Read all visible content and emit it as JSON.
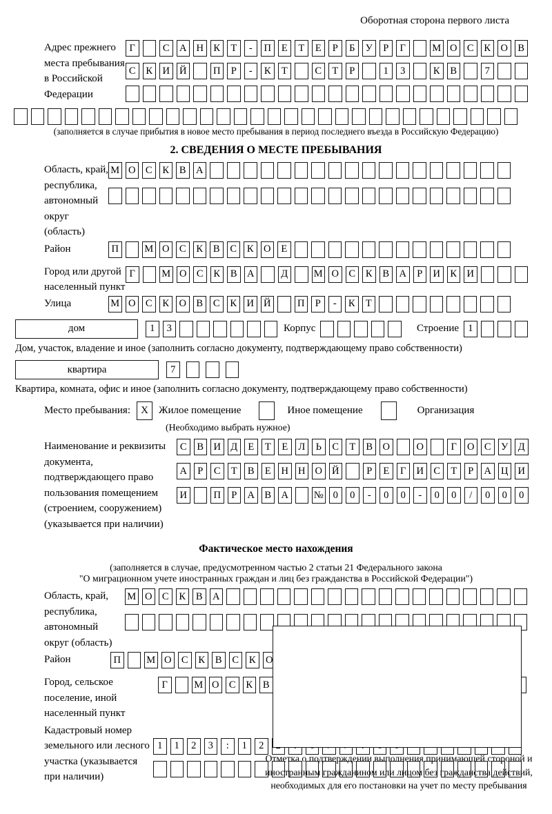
{
  "page": {
    "header_note": "Оборотная сторона первого листа"
  },
  "prev_address": {
    "label": "Адрес прежнего места пребывания в Российской Федерации",
    "rows": [
      {
        "value": "Г САНКТ-ПЕТЕРБУРГ МОСКОВ",
        "count": 24
      },
      {
        "value": "СКИЙ ПР-КТ СТР 13 КВ 7",
        "count": 24
      },
      {
        "value": "",
        "count": 24
      },
      {
        "value": "",
        "count": 30
      }
    ],
    "note": "(заполняется в случае прибытия в новое место пребывания в период последнего въезда в Российскую Федерацию)"
  },
  "section2": {
    "title": "2. СВЕДЕНИЯ О МЕСТЕ ПРЕБЫВАНИЯ",
    "region": {
      "label": "Область, край, республика, автономный округ (область)",
      "rows": [
        {
          "value": "МОСКВА",
          "count": 24
        },
        {
          "value": "",
          "count": 24
        }
      ]
    },
    "district": {
      "label": "Район",
      "row": {
        "value": "П МОСКВСКОЕ",
        "count": 24
      }
    },
    "city": {
      "label": "Город или другой населенный пункт",
      "row": {
        "value": "Г МОСКВА Д МОСКВАРИКИ",
        "count": 24
      }
    },
    "street": {
      "label": "Улица",
      "row": {
        "value": "МОСКОВСКИЙ ПР-КТ",
        "count": 24
      }
    },
    "house": {
      "box_label": "дом",
      "row": {
        "value": "13",
        "count": 8
      },
      "korpus_label": "Корпус",
      "korpus_row": {
        "value": "",
        "count": 5
      },
      "stroenie_label": "Строение",
      "stroenie_row": {
        "value": "1",
        "count": 4
      },
      "note": "Дом, участок, владение и иное (заполнить согласно документу, подтверждающему право собственности)"
    },
    "apartment": {
      "box_label": "квартира",
      "row": {
        "value": "7",
        "count": 4
      },
      "note": "Квартира, комната, офис и иное (заполнить согласно документу, подтверждающему право собственности)"
    },
    "stay_type": {
      "label": "Место пребывания:",
      "options": [
        {
          "checked": "X",
          "label": "Жилое помещение"
        },
        {
          "checked": "",
          "label": "Иное помещение"
        },
        {
          "checked": "",
          "label": "Организация"
        }
      ],
      "note": "(Необходимо выбрать нужное)"
    },
    "document": {
      "label": "Наименование и реквизиты документа, подтверждающего право пользования помещением (строением, сооружением) (указывается при наличии)",
      "rows": [
        {
          "value": "СВИДЕТЕЛЬСТВО О ГОСУД",
          "count": 21
        },
        {
          "value": "АРСТВЕННОЙ РЕГИСТРАЦИ",
          "count": 21
        },
        {
          "value": "И ПРАВА №00-00-00/000",
          "count": 21
        }
      ]
    }
  },
  "actual_location": {
    "title": "Фактическое место нахождения",
    "note_line1": "(заполняется в случае, предусмотренном частью 2 статьи 21 Федерального закона",
    "note_line2": "\"О миграционном учете иностранных граждан и лиц без гражданства в Российской Федерации\")",
    "region": {
      "label": "Область, край, республика, автономный округ (область)",
      "rows": [
        {
          "value": "МОСКВА",
          "count": 24
        },
        {
          "value": "",
          "count": 24
        }
      ]
    },
    "district": {
      "label": "Район",
      "row": {
        "value": "П МОСКВСКОЕ",
        "count": 24
      }
    },
    "city": {
      "label": "Город, сельское поселение, иной населенный пункт",
      "row": {
        "value": "Г МОСКВА Д МОСКВАРИКИ",
        "count": 22
      }
    },
    "cadastral": {
      "label": "Кадастровый номер земельного или лесного участка (указывается при наличии)",
      "rows": [
        {
          "value": "1123:122:677:66",
          "count": 22
        },
        {
          "value": "",
          "count": 22
        }
      ]
    }
  },
  "confirmation": {
    "caption": "Отметка о подтверждении выполнения принимающей стороной и иностранным гражданином или лицом без гражданства действий, необходимых для его постановки на учет по месту пребывания"
  }
}
